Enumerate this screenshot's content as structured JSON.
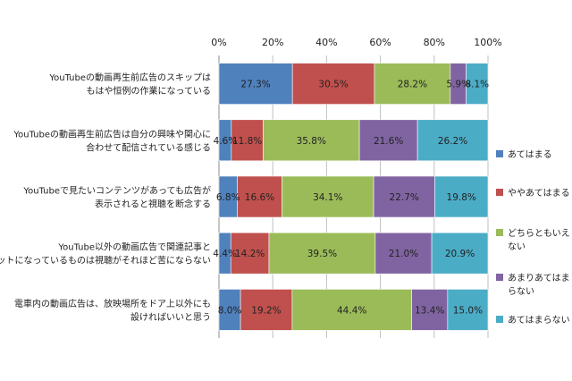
{
  "chart_data": {
    "type": "bar",
    "orientation": "horizontal",
    "stacked": "percent",
    "xlim": [
      0,
      100
    ],
    "x_ticks": [
      "0%",
      "20%",
      "40%",
      "60%",
      "80%",
      "100%"
    ],
    "x_axis_position": "top",
    "grid": true,
    "legend_position": "right",
    "categories": [
      [
        "YouTubeの動画再生前広告のスキップは",
        "もはや恒例の作業になっている"
      ],
      [
        "YouTubeの動画再生前広告は自分の興味や関心に",
        "合わせて配信されている感じる"
      ],
      [
        "YouTubeで見たいコンテンツがあっても広告が",
        "表示されると視聴を断念する"
      ],
      [
        "YouTube以外の動画広告で関連記事と",
        "セットになっているものは視聴がそれほど苦にならない"
      ],
      [
        "電車内の動画広告は、放映場所をドア上以外にも",
        "設ければいいと思う"
      ]
    ],
    "series": [
      {
        "name": [
          "あてはまる"
        ],
        "color": "#4f81bd",
        "values": [
          27.3,
          4.6,
          6.8,
          4.4,
          8.0
        ],
        "labels": [
          "27.3%",
          "4.6%",
          "6.8%",
          "4.4%",
          "8.0%"
        ]
      },
      {
        "name": [
          "ややあてはまる"
        ],
        "color": "#c0504d",
        "values": [
          30.5,
          11.8,
          16.6,
          14.2,
          19.2
        ],
        "labels": [
          "30.5%",
          "11.8%",
          "16.6%",
          "14.2%",
          "19.2%"
        ]
      },
      {
        "name": [
          "どちらともいえ",
          "ない"
        ],
        "color": "#9bbb59",
        "values": [
          28.2,
          35.8,
          34.1,
          39.5,
          44.4
        ],
        "labels": [
          "28.2%",
          "35.8%",
          "34.1%",
          "39.5%",
          "44.4%"
        ]
      },
      {
        "name": [
          "あまりあてはま",
          "らない"
        ],
        "color": "#8064a2",
        "values": [
          5.9,
          21.6,
          22.7,
          21.0,
          13.4
        ],
        "labels": [
          "5.9%",
          "21.6%",
          "22.7%",
          "21.0%",
          "13.4%"
        ]
      },
      {
        "name": [
          "あてはまらない"
        ],
        "color": "#4bacc6",
        "values": [
          8.1,
          26.2,
          19.8,
          20.9,
          15.0
        ],
        "labels": [
          "8.1%",
          "26.2%",
          "19.8%",
          "20.9%",
          "15.0%"
        ]
      }
    ]
  }
}
